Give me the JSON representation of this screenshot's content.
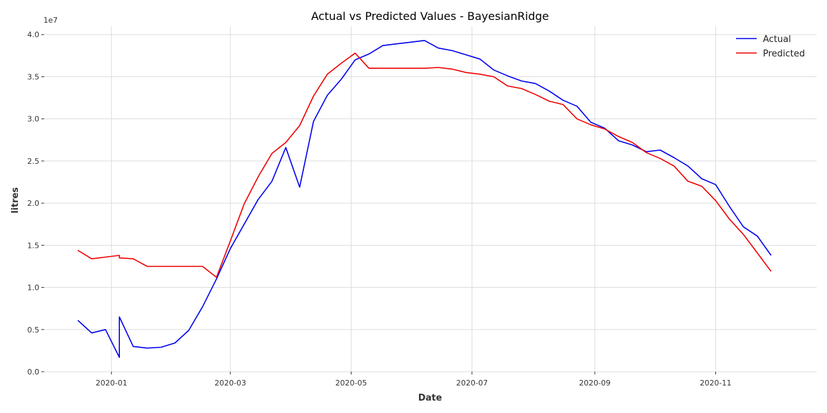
{
  "chart_data": {
    "type": "line",
    "title": "Actual vs Predicted Values - BayesianRidge",
    "xlabel": "Date",
    "ylabel": "litres",
    "y_offset_label": "1e7",
    "x_ticks": [
      "2020-01",
      "2020-03",
      "2020-05",
      "2020-07",
      "2020-09",
      "2020-11"
    ],
    "y_ticks": [
      "0.0",
      "0.5",
      "1.0",
      "1.5",
      "2.0",
      "2.5",
      "3.0",
      "3.5",
      "4.0"
    ],
    "xlim": [
      "2019-11-28",
      "2020-12-22"
    ],
    "ylim": [
      0,
      4.1
    ],
    "grid": true,
    "legend_position": "top-right",
    "colors": {
      "actual": "#0000ee",
      "predicted": "#ee0000"
    },
    "series": [
      {
        "name": "Actual",
        "color": "#0000ee",
        "points": [
          [
            "2019-12-15",
            0.61
          ],
          [
            "2019-12-22",
            0.46
          ],
          [
            "2019-12-29",
            0.5
          ],
          [
            "2020-01-05",
            0.17
          ],
          [
            "2020-01-05",
            0.65
          ],
          [
            "2020-01-12",
            0.3
          ],
          [
            "2020-01-19",
            0.28
          ],
          [
            "2020-01-26",
            0.29
          ],
          [
            "2020-02-02",
            0.34
          ],
          [
            "2020-02-09",
            0.49
          ],
          [
            "2020-02-16",
            0.77
          ],
          [
            "2020-02-23",
            1.1
          ],
          [
            "2020-03-01",
            1.46
          ],
          [
            "2020-03-08",
            1.75
          ],
          [
            "2020-03-15",
            2.04
          ],
          [
            "2020-03-22",
            2.26
          ],
          [
            "2020-03-29",
            2.66
          ],
          [
            "2020-04-05",
            2.19
          ],
          [
            "2020-04-12",
            2.97
          ],
          [
            "2020-04-19",
            3.28
          ],
          [
            "2020-04-26",
            3.47
          ],
          [
            "2020-05-03",
            3.7
          ],
          [
            "2020-05-10",
            3.77
          ],
          [
            "2020-05-17",
            3.87
          ],
          [
            "2020-05-24",
            3.89
          ],
          [
            "2020-05-31",
            3.91
          ],
          [
            "2020-06-07",
            3.93
          ],
          [
            "2020-06-14",
            3.84
          ],
          [
            "2020-06-21",
            3.81
          ],
          [
            "2020-06-28",
            3.76
          ],
          [
            "2020-07-05",
            3.71
          ],
          [
            "2020-07-12",
            3.58
          ],
          [
            "2020-07-19",
            3.51
          ],
          [
            "2020-07-26",
            3.45
          ],
          [
            "2020-08-02",
            3.42
          ],
          [
            "2020-08-09",
            3.33
          ],
          [
            "2020-08-16",
            3.22
          ],
          [
            "2020-08-23",
            3.15
          ],
          [
            "2020-08-30",
            2.96
          ],
          [
            "2020-09-06",
            2.89
          ],
          [
            "2020-09-13",
            2.74
          ],
          [
            "2020-09-20",
            2.69
          ],
          [
            "2020-09-27",
            2.61
          ],
          [
            "2020-10-04",
            2.63
          ],
          [
            "2020-10-11",
            2.54
          ],
          [
            "2020-10-18",
            2.44
          ],
          [
            "2020-10-25",
            2.29
          ],
          [
            "2020-11-01",
            2.22
          ],
          [
            "2020-11-08",
            1.96
          ],
          [
            "2020-11-15",
            1.72
          ],
          [
            "2020-11-22",
            1.61
          ],
          [
            "2020-11-29",
            1.38
          ]
        ]
      },
      {
        "name": "Predicted",
        "color": "#ee0000",
        "points": [
          [
            "2019-12-15",
            1.44
          ],
          [
            "2019-12-22",
            1.34
          ],
          [
            "2019-12-29",
            1.36
          ],
          [
            "2020-01-05",
            1.38
          ],
          [
            "2020-01-05",
            1.35
          ],
          [
            "2020-01-12",
            1.34
          ],
          [
            "2020-01-19",
            1.25
          ],
          [
            "2020-01-26",
            1.25
          ],
          [
            "2020-02-02",
            1.25
          ],
          [
            "2020-02-09",
            1.25
          ],
          [
            "2020-02-16",
            1.25
          ],
          [
            "2020-02-23",
            1.12
          ],
          [
            "2020-03-01",
            1.55
          ],
          [
            "2020-03-08",
            1.99
          ],
          [
            "2020-03-15",
            2.31
          ],
          [
            "2020-03-22",
            2.59
          ],
          [
            "2020-03-29",
            2.72
          ],
          [
            "2020-04-05",
            2.92
          ],
          [
            "2020-04-12",
            3.27
          ],
          [
            "2020-04-19",
            3.53
          ],
          [
            "2020-04-26",
            3.66
          ],
          [
            "2020-05-03",
            3.78
          ],
          [
            "2020-05-10",
            3.6
          ],
          [
            "2020-05-17",
            3.6
          ],
          [
            "2020-05-24",
            3.6
          ],
          [
            "2020-05-31",
            3.6
          ],
          [
            "2020-06-07",
            3.6
          ],
          [
            "2020-06-14",
            3.61
          ],
          [
            "2020-06-21",
            3.59
          ],
          [
            "2020-06-28",
            3.55
          ],
          [
            "2020-07-05",
            3.53
          ],
          [
            "2020-07-12",
            3.5
          ],
          [
            "2020-07-19",
            3.39
          ],
          [
            "2020-07-26",
            3.36
          ],
          [
            "2020-08-02",
            3.29
          ],
          [
            "2020-08-09",
            3.21
          ],
          [
            "2020-08-16",
            3.17
          ],
          [
            "2020-08-23",
            3.0
          ],
          [
            "2020-08-30",
            2.93
          ],
          [
            "2020-09-06",
            2.88
          ],
          [
            "2020-09-13",
            2.79
          ],
          [
            "2020-09-20",
            2.72
          ],
          [
            "2020-09-27",
            2.6
          ],
          [
            "2020-10-04",
            2.53
          ],
          [
            "2020-10-11",
            2.44
          ],
          [
            "2020-10-18",
            2.26
          ],
          [
            "2020-10-25",
            2.2
          ],
          [
            "2020-11-01",
            2.03
          ],
          [
            "2020-11-08",
            1.81
          ],
          [
            "2020-11-15",
            1.63
          ],
          [
            "2020-11-22",
            1.41
          ],
          [
            "2020-11-29",
            1.19
          ]
        ]
      }
    ]
  }
}
